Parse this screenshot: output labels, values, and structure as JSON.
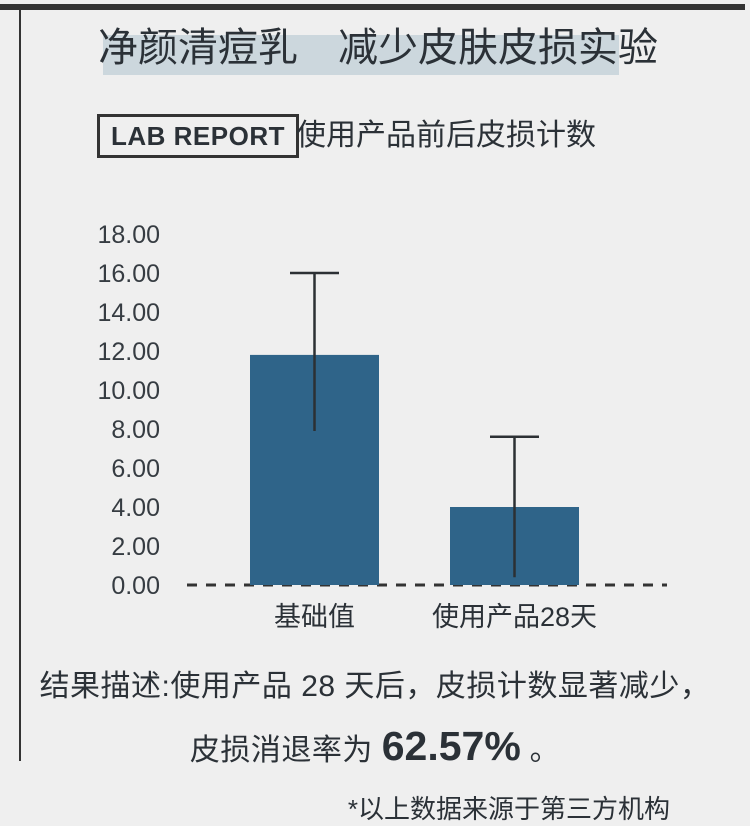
{
  "colors": {
    "background": "#efefef",
    "frame": "#333333",
    "text": "#2b3137",
    "title_highlight": "#ccd7dd",
    "bar_fill": "#2f6489",
    "error_bar": "#2c3034",
    "axis_dash": "#333333"
  },
  "header": {
    "title": "净颜清痘乳　减少皮肤皮损实验",
    "lab_badge": "LAB REPORT",
    "subtitle": "使用产品前后皮损计数"
  },
  "chart_data": {
    "type": "bar",
    "title": "使用产品前后皮损计数",
    "categories": [
      "基础值",
      "使用产品28天"
    ],
    "values": [
      11.8,
      4.0
    ],
    "error_bars": [
      {
        "low": 7.9,
        "high": 16.0
      },
      {
        "low": 0.4,
        "high": 7.6
      }
    ],
    "ylim": [
      0,
      18
    ],
    "ytick_values": [
      0,
      2,
      4,
      6,
      8,
      10,
      12,
      14,
      16,
      18
    ],
    "ytick_labels": [
      "0.00",
      "2.00",
      "4.00",
      "6.00",
      "8.00",
      "10.00",
      "12.00",
      "14.00",
      "16.00",
      "18.00"
    ],
    "xlabel": "",
    "ylabel": "",
    "grid": false,
    "legend_position": "none",
    "baseline_style": "dashed",
    "error_caps": "top-only"
  },
  "results": {
    "line1": "结果描述:使用产品 28 天后，皮损计数显著减少，",
    "line2_prefix": "皮损消退率为 ",
    "highlight_value": "62.57%",
    "line2_suffix": " 。"
  },
  "footer": {
    "disclaimer": "*以上数据来源于第三方机构"
  }
}
